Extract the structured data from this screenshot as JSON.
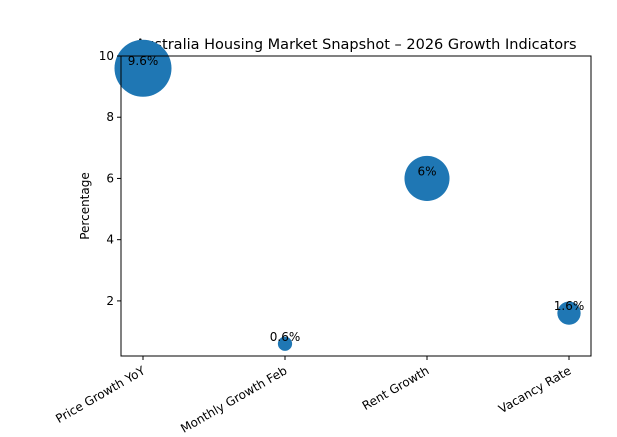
{
  "chart_data": {
    "type": "scatter",
    "title": "Australia Housing Market Snapshot – 2026 Growth Indicators",
    "xlabel": "",
    "ylabel": "Percentage",
    "ylim": [
      0.2,
      10.0
    ],
    "yticks": [
      2,
      4,
      6,
      8,
      10
    ],
    "categories": [
      "Price Growth YoY",
      "Monthly Growth Feb",
      "Rent Growth",
      "Vacancy Rate"
    ],
    "values": [
      9.6,
      0.6,
      6,
      1.6
    ],
    "labels": [
      "9.6%",
      "0.6%",
      "6%",
      "1.6%"
    ],
    "marker_size_by": "value",
    "color": "#1f77b4",
    "grid": false,
    "legend": "none"
  }
}
